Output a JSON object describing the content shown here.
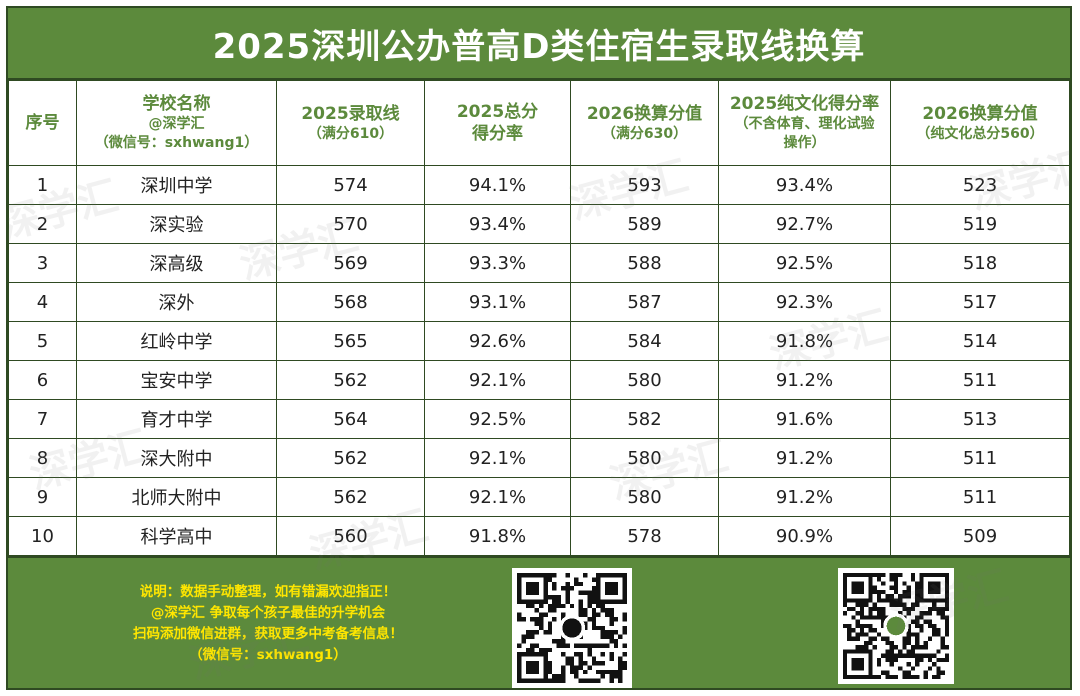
{
  "title": "2025深圳公办普高D类住宿生录取线换算",
  "headers": [
    {
      "main": "序号",
      "sub": ""
    },
    {
      "main": "学校名称",
      "sub": "@深学汇",
      "sub2": "（微信号：sxhwang1）"
    },
    {
      "main": "2025录取线",
      "sub": "（满分610）"
    },
    {
      "main": "2025总分",
      "sub": "得分率"
    },
    {
      "main": "2026换算分值",
      "sub": "（满分630）"
    },
    {
      "main": "2025纯文化得分率",
      "sub": "（不含体育、理化试验",
      "sub2": "操作）"
    },
    {
      "main": "2026换算分值",
      "sub": "（纯文化总分560）"
    }
  ],
  "rows": [
    [
      "1",
      "深圳中学",
      "574",
      "94.1%",
      "593",
      "93.4%",
      "523"
    ],
    [
      "2",
      "深实验",
      "570",
      "93.4%",
      "589",
      "92.7%",
      "519"
    ],
    [
      "3",
      "深高级",
      "569",
      "93.3%",
      "588",
      "92.5%",
      "518"
    ],
    [
      "4",
      "深外",
      "568",
      "93.1%",
      "587",
      "92.3%",
      "517"
    ],
    [
      "5",
      "红岭中学",
      "565",
      "92.6%",
      "584",
      "91.8%",
      "514"
    ],
    [
      "6",
      "宝安中学",
      "562",
      "92.1%",
      "580",
      "91.2%",
      "511"
    ],
    [
      "7",
      "育才中学",
      "564",
      "92.5%",
      "582",
      "91.6%",
      "513"
    ],
    [
      "8",
      "深大附中",
      "562",
      "92.1%",
      "580",
      "91.2%",
      "511"
    ],
    [
      "9",
      "北师大附中",
      "562",
      "92.1%",
      "580",
      "91.2%",
      "511"
    ],
    [
      "10",
      "科学高中",
      "560",
      "91.8%",
      "578",
      "90.9%",
      "509"
    ]
  ],
  "footer": {
    "lines": [
      "说明：数据手动整理，如有错漏欢迎指正！",
      "@深学汇 争取每个孩子最佳的升学机会",
      "扫码添加微信进群，获取更多中考备考信息！",
      "（微信号：sxhwang1）"
    ]
  },
  "watermark": "深学汇",
  "colors": {
    "header_green": "#5c8a3c",
    "border": "#2f4a22",
    "note_yellow": "#ffe600"
  }
}
